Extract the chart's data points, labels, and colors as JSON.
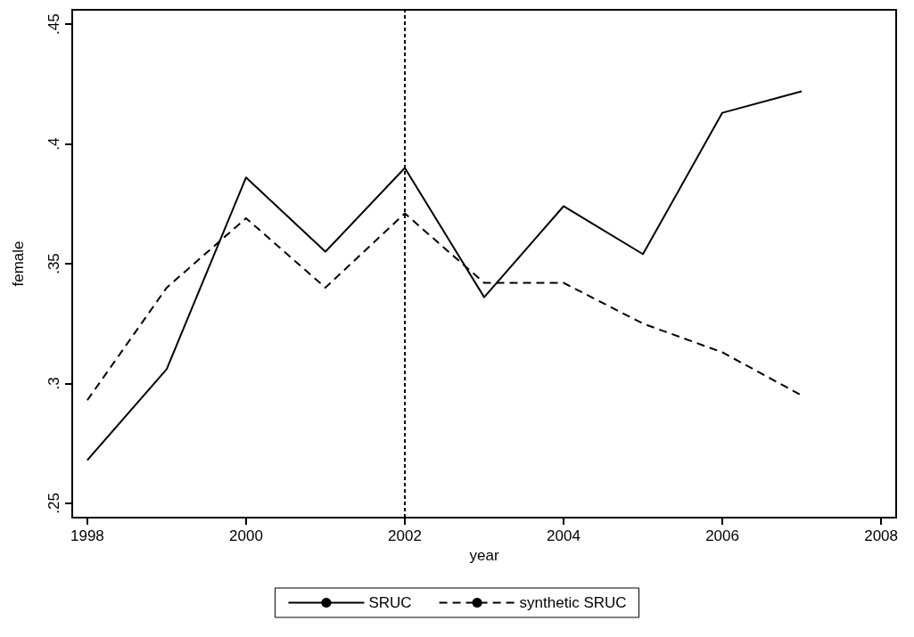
{
  "chart_data": {
    "type": "line",
    "xlabel": "year",
    "ylabel": "female",
    "x": [
      1998,
      1999,
      2000,
      2001,
      2002,
      2003,
      2004,
      2005,
      2006,
      2007
    ],
    "series": [
      {
        "name": "SRUC",
        "color": "#000000",
        "line_style": "solid",
        "values": [
          0.268,
          0.306,
          0.386,
          0.355,
          0.39,
          0.336,
          0.374,
          0.354,
          0.413,
          0.422
        ]
      },
      {
        "name": "synthetic SRUC",
        "color": "#000000",
        "line_style": "dashed",
        "values": [
          0.293,
          0.34,
          0.369,
          0.34,
          0.371,
          0.342,
          0.342,
          0.325,
          0.313,
          0.295
        ]
      }
    ],
    "xlim": [
      1997.81,
      2008.19
    ],
    "xticks": [
      1998,
      2000,
      2002,
      2004,
      2006,
      2008
    ],
    "ylim": [
      0.244,
      0.456
    ],
    "yticks": [
      {
        "value": 0.25,
        "label": ".25"
      },
      {
        "value": 0.3,
        "label": ".3"
      },
      {
        "value": 0.35,
        "label": ".35"
      },
      {
        "value": 0.4,
        "label": ".4"
      },
      {
        "value": 0.45,
        "label": ".45"
      }
    ],
    "ref_lines": [
      {
        "axis": "x",
        "value": 2002,
        "color": "#000000",
        "line_style": "dotted"
      }
    ],
    "grid": false,
    "legend": "bottom",
    "marker": "none"
  }
}
